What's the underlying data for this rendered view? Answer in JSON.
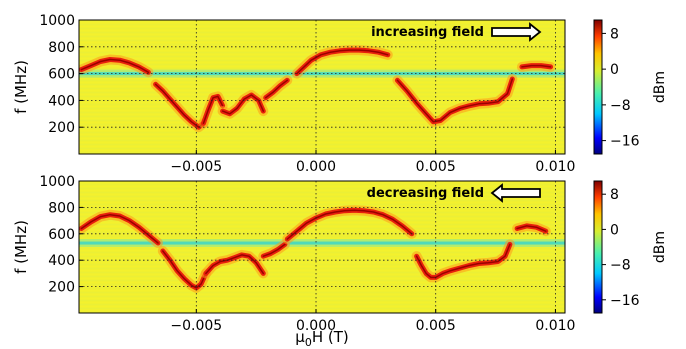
{
  "figure": {
    "xlabel_prefix": "μ",
    "xlabel_sub": "0",
    "xlabel_suffix": "H (T)"
  },
  "chart_data": [
    {
      "type": "heatmap",
      "title": "",
      "annotation": "increasing field",
      "arrow_direction": "right",
      "xlabel": "",
      "ylabel": "f (MHz)",
      "xlim": [
        -0.0099,
        0.0104
      ],
      "ylim": [
        0,
        1000
      ],
      "xticks": [
        -0.005,
        0.0,
        0.005,
        0.01
      ],
      "xtick_labels": [
        "−0.005",
        "0.000",
        "0.005",
        "0.010"
      ],
      "yticks": [
        200,
        400,
        600,
        800,
        1000
      ],
      "ytick_labels": [
        "200",
        "400",
        "600",
        "800",
        "1000"
      ],
      "grid": true,
      "background_level_dbm": 2,
      "horizontal_band_mhz": 600,
      "colorbar": {
        "label": "dBm",
        "ticks": [
          8,
          0,
          -8,
          -16
        ],
        "tick_labels": [
          "8",
          "0",
          "−8",
          "−16"
        ],
        "range": [
          -19,
          11
        ]
      },
      "resonance_traces": [
        {
          "x": [
            -0.0098,
            -0.0094,
            -0.009,
            -0.0086,
            -0.0082,
            -0.0078,
            -0.0074,
            -0.007
          ],
          "y": [
            630,
            660,
            690,
            705,
            700,
            680,
            650,
            610
          ]
        },
        {
          "x": [
            -0.0067,
            -0.0064,
            -0.0061,
            -0.0058,
            -0.0055,
            -0.0052,
            -0.0049,
            -0.0047
          ],
          "y": [
            520,
            470,
            410,
            350,
            290,
            240,
            200,
            230
          ]
        },
        {
          "x": [
            -0.0047,
            -0.0045,
            -0.0043,
            -0.0041,
            -0.0039
          ],
          "y": [
            230,
            330,
            420,
            430,
            360
          ]
        },
        {
          "x": [
            -0.0039,
            -0.0036,
            -0.0033,
            -0.003,
            -0.0027,
            -0.0024,
            -0.0022
          ],
          "y": [
            320,
            300,
            340,
            410,
            440,
            400,
            320
          ]
        },
        {
          "x": [
            -0.0021,
            -0.0018,
            -0.0015,
            -0.0012
          ],
          "y": [
            420,
            460,
            510,
            550
          ]
        },
        {
          "x": [
            -0.0008,
            -0.0005,
            -0.0002,
            0.0002,
            0.0006,
            0.001,
            0.0014,
            0.0018,
            0.0022,
            0.0026,
            0.003
          ],
          "y": [
            600,
            650,
            700,
            740,
            760,
            770,
            775,
            775,
            770,
            760,
            740
          ]
        },
        {
          "x": [
            0.0034,
            0.0038,
            0.0042,
            0.0046,
            0.0049,
            0.0052,
            0.0056,
            0.006,
            0.0064,
            0.0068,
            0.0072,
            0.0076,
            0.008,
            0.0082
          ],
          "y": [
            550,
            470,
            380,
            300,
            240,
            250,
            310,
            340,
            360,
            375,
            380,
            390,
            450,
            560
          ]
        },
        {
          "x": [
            0.0086,
            0.009,
            0.0094,
            0.0098
          ],
          "y": [
            650,
            660,
            660,
            650
          ]
        }
      ]
    },
    {
      "type": "heatmap",
      "title": "",
      "annotation": "decreasing field",
      "arrow_direction": "left",
      "xlabel": "μ0H (T)",
      "ylabel": "f (MHz)",
      "xlim": [
        -0.0099,
        0.0104
      ],
      "ylim": [
        0,
        1000
      ],
      "xticks": [
        -0.005,
        0.0,
        0.005,
        0.01
      ],
      "xtick_labels": [
        "−0.005",
        "0.000",
        "0.005",
        "0.010"
      ],
      "yticks": [
        200,
        400,
        600,
        800,
        1000
      ],
      "ytick_labels": [
        "200",
        "400",
        "600",
        "800",
        "1000"
      ],
      "grid": true,
      "background_level_dbm": 2,
      "horizontal_band_mhz": 530,
      "colorbar": {
        "label": "dBm",
        "ticks": [
          8,
          0,
          -8,
          -16
        ],
        "tick_labels": [
          "8",
          "0",
          "−8",
          "−16"
        ],
        "range": [
          -19,
          11
        ]
      },
      "resonance_traces": [
        {
          "x": [
            -0.0098,
            -0.0094,
            -0.009,
            -0.0086,
            -0.0082,
            -0.0078,
            -0.0074,
            -0.007,
            -0.0066
          ],
          "y": [
            640,
            690,
            730,
            745,
            735,
            700,
            650,
            590,
            530
          ]
        },
        {
          "x": [
            -0.0064,
            -0.0061,
            -0.0058,
            -0.0055,
            -0.0052,
            -0.005,
            -0.0048,
            -0.0046
          ],
          "y": [
            470,
            400,
            320,
            260,
            210,
            190,
            220,
            300
          ]
        },
        {
          "x": [
            -0.0046,
            -0.0043,
            -0.004,
            -0.0037,
            -0.0034,
            -0.0031,
            -0.0028,
            -0.0025,
            -0.0022
          ],
          "y": [
            300,
            360,
            390,
            400,
            420,
            440,
            430,
            380,
            300
          ]
        },
        {
          "x": [
            -0.0022,
            -0.0019,
            -0.0016,
            -0.0013
          ],
          "y": [
            430,
            450,
            480,
            520
          ]
        },
        {
          "x": [
            -0.0012,
            -0.0008,
            -0.0004,
            0.0,
            0.0004,
            0.0008,
            0.0012,
            0.0016,
            0.002,
            0.0024,
            0.0028,
            0.0032,
            0.0036,
            0.004
          ],
          "y": [
            560,
            620,
            680,
            720,
            750,
            765,
            775,
            778,
            775,
            765,
            745,
            710,
            660,
            600
          ]
        },
        {
          "x": [
            0.0042,
            0.0044,
            0.0046,
            0.0048,
            0.005,
            0.0053,
            0.0056,
            0.006,
            0.0064,
            0.0068,
            0.0072,
            0.0076,
            0.0079,
            0.0081
          ],
          "y": [
            430,
            360,
            300,
            270,
            270,
            300,
            320,
            340,
            360,
            375,
            380,
            390,
            430,
            520
          ]
        },
        {
          "x": [
            0.0084,
            0.0088,
            0.0092,
            0.0096
          ],
          "y": [
            640,
            660,
            650,
            620
          ]
        }
      ]
    }
  ]
}
